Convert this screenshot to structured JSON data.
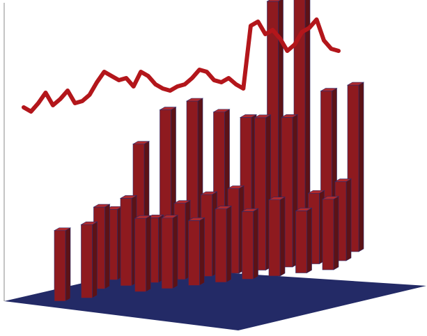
{
  "chart_data": {
    "type": "bar3d_with_line",
    "title": "",
    "xlabel": "",
    "ylabel": "",
    "zlabel": "",
    "colors": {
      "bar_front": "#8e1a1f",
      "bar_side": "#5c1216",
      "bar_top": "#b02a2e",
      "bar_edge": "#2a2a6a",
      "floor": "#232a66",
      "line": "#b3161b",
      "axis": "#888888"
    },
    "grid": false,
    "legend": "none",
    "bars": [
      {
        "x": 0,
        "y": 0,
        "height": 2.5
      },
      {
        "x": 1,
        "y": 0,
        "height": 2.6
      },
      {
        "x": 1,
        "y": 1,
        "height": 2.9
      },
      {
        "x": 1,
        "y": 2,
        "height": 2.5
      },
      {
        "x": 2,
        "y": 1,
        "height": 3.1
      },
      {
        "x": 2,
        "y": 2,
        "height": 4.7
      },
      {
        "x": 3,
        "y": 2,
        "height": 5.8
      },
      {
        "x": 3,
        "y": 1,
        "height": 2.3
      },
      {
        "x": 3,
        "y": 0,
        "height": 2.6
      },
      {
        "x": 4,
        "y": 2,
        "height": 6.0
      },
      {
        "x": 4,
        "y": 1,
        "height": 2.7
      },
      {
        "x": 4,
        "y": 0,
        "height": 2.5
      },
      {
        "x": 5,
        "y": 2,
        "height": 5.5
      },
      {
        "x": 5,
        "y": 1,
        "height": 2.9
      },
      {
        "x": 5,
        "y": 0,
        "height": 2.3
      },
      {
        "x": 6,
        "y": 2,
        "height": 5.2
      },
      {
        "x": 6,
        "y": 1,
        "height": 3.0
      },
      {
        "x": 6,
        "y": 0,
        "height": 2.6
      },
      {
        "x": 7,
        "y": 2,
        "height": 9.2
      },
      {
        "x": 7,
        "y": 1,
        "height": 5.4
      },
      {
        "x": 7,
        "y": 0,
        "height": 2.4
      },
      {
        "x": 8,
        "y": 2,
        "height": 9.5
      },
      {
        "x": 8,
        "y": 1,
        "height": 5.3
      },
      {
        "x": 8,
        "y": 0,
        "height": 2.7
      },
      {
        "x": 9,
        "y": 2,
        "height": 5.8
      },
      {
        "x": 9,
        "y": 1,
        "height": 2.5
      },
      {
        "x": 9,
        "y": 0,
        "height": 2.2
      },
      {
        "x": 10,
        "y": 2,
        "height": 5.9
      },
      {
        "x": 10,
        "y": 1,
        "height": 2.8
      },
      {
        "x": 10,
        "y": 0,
        "height": 2.5
      }
    ],
    "line": {
      "values": [
        3.2,
        3.0,
        3.4,
        3.9,
        3.3,
        3.6,
        4.0,
        3.4,
        3.5,
        3.8,
        4.4,
        4.9,
        4.7,
        4.5,
        4.6,
        4.2,
        4.9,
        4.7,
        4.3,
        4.1,
        4.0,
        4.2,
        4.3,
        4.6,
        5.0,
        4.9,
        4.5,
        4.4,
        4.6,
        4.3,
        4.1,
        7.1,
        7.3,
        6.7,
        6.9,
        6.5,
        5.9,
        6.2,
        6.8,
        7.0,
        7.4,
        6.4,
        6.0,
        5.9
      ]
    }
  }
}
